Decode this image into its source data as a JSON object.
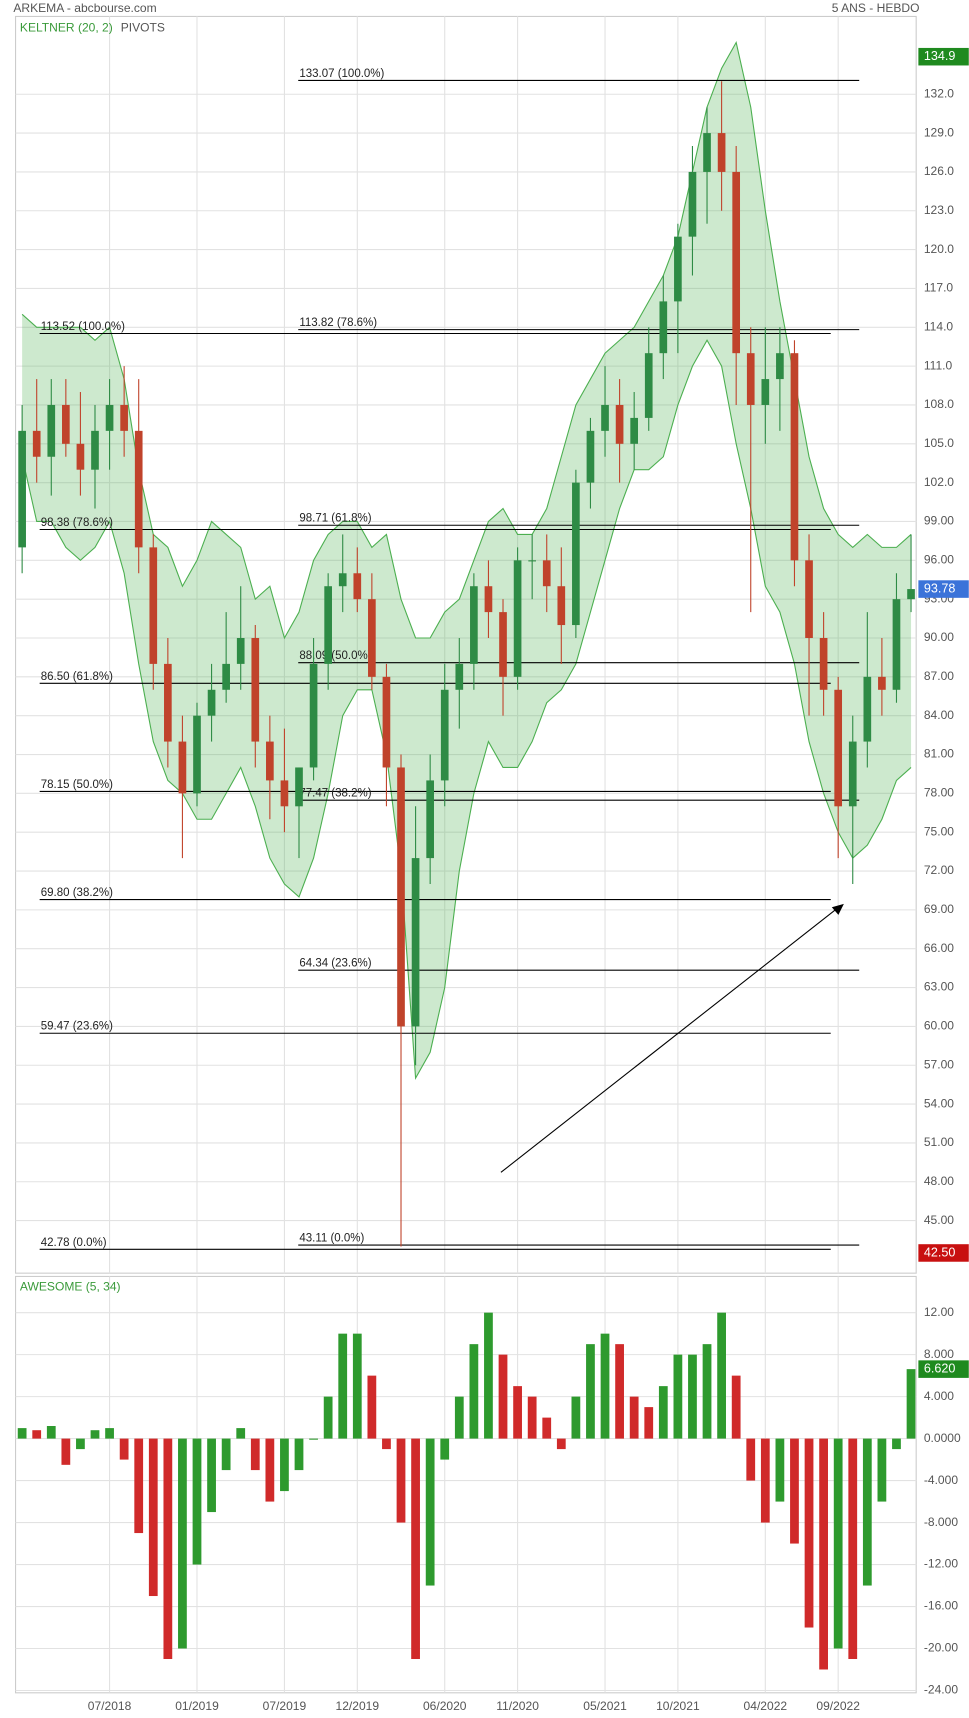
{
  "header": {
    "title": "ARKEMA - abcbourse.com",
    "period": "5 ANS - HEBDO"
  },
  "chart_data": [
    {
      "type": "candlestick",
      "indicator": "KELTNER (20, 2)",
      "overlay": "PIVOTS",
      "x": [
        "01/2018",
        "02/2018",
        "03/2018",
        "04/2018",
        "05/2018",
        "06/2018",
        "07/2018",
        "08/2018",
        "09/2018",
        "10/2018",
        "11/2018",
        "12/2018",
        "01/2019",
        "02/2019",
        "03/2019",
        "04/2019",
        "05/2019",
        "06/2019",
        "07/2019",
        "08/2019",
        "09/2019",
        "10/2019",
        "11/2019",
        "12/2019",
        "01/2020",
        "02/2020",
        "03/2020",
        "04/2020",
        "05/2020",
        "06/2020",
        "07/2020",
        "08/2020",
        "09/2020",
        "10/2020",
        "11/2020",
        "12/2020",
        "01/2021",
        "02/2021",
        "03/2021",
        "04/2021",
        "05/2021",
        "06/2021",
        "07/2021",
        "08/2021",
        "09/2021",
        "10/2021",
        "11/2021",
        "12/2021",
        "01/2022",
        "02/2022",
        "03/2022",
        "04/2022",
        "05/2022",
        "06/2022",
        "07/2022",
        "08/2022",
        "09/2022",
        "10/2022",
        "11/2022",
        "12/2022",
        "01/2023",
        "02/2023"
      ],
      "open": [
        97,
        106,
        104,
        108,
        105,
        103,
        106,
        108,
        106,
        97,
        88,
        82,
        78,
        84,
        86,
        88,
        90,
        82,
        79,
        77,
        80,
        88,
        94,
        95,
        93,
        87,
        80,
        60,
        73,
        79,
        86,
        88,
        94,
        92,
        87,
        96,
        96,
        94,
        91,
        102,
        106,
        108,
        105,
        107,
        112,
        116,
        121,
        126,
        129,
        126,
        112,
        108,
        110,
        112,
        96,
        90,
        86,
        77,
        82,
        87,
        86,
        93
      ],
      "high": [
        108,
        110,
        110,
        110,
        109,
        108,
        110,
        111,
        110,
        98,
        90,
        84,
        85,
        88,
        92,
        94,
        91,
        84,
        83,
        80,
        90,
        95,
        98,
        97,
        95,
        88,
        81,
        77,
        81,
        88,
        90,
        95,
        96,
        93,
        97,
        98,
        98,
        97,
        103,
        107,
        111,
        110,
        109,
        114,
        118,
        122,
        128,
        131,
        133,
        128,
        114,
        114,
        114,
        113,
        98,
        92,
        87,
        84,
        92,
        90,
        95,
        98
      ],
      "low": [
        95,
        102,
        101,
        104,
        101,
        100,
        103,
        104,
        95,
        86,
        80,
        73,
        77,
        82,
        85,
        86,
        80,
        76,
        75,
        73,
        79,
        86,
        92,
        92,
        86,
        77,
        43,
        57,
        71,
        77,
        83,
        86,
        90,
        84,
        86,
        93,
        92,
        88,
        90,
        100,
        104,
        102,
        103,
        106,
        110,
        112,
        118,
        122,
        123,
        108,
        92,
        105,
        106,
        94,
        84,
        84,
        73,
        71,
        80,
        84,
        85,
        92
      ],
      "close": [
        106,
        104,
        108,
        105,
        103,
        106,
        108,
        106,
        97,
        88,
        82,
        78,
        84,
        86,
        88,
        90,
        82,
        79,
        77,
        80,
        88,
        94,
        95,
        93,
        87,
        80,
        60,
        73,
        79,
        86,
        88,
        94,
        92,
        87,
        96,
        96,
        94,
        91,
        102,
        106,
        108,
        105,
        107,
        112,
        116,
        121,
        126,
        129,
        126,
        112,
        108,
        110,
        112,
        96,
        90,
        86,
        77,
        82,
        87,
        86,
        93,
        93.78
      ],
      "band_upper": [
        115,
        114,
        114,
        114,
        114,
        113,
        114,
        110,
        103,
        98,
        97,
        94,
        96,
        99,
        98,
        97,
        93,
        94,
        90,
        92,
        96,
        98,
        99,
        99,
        97,
        98,
        93,
        90,
        90,
        92,
        93,
        96,
        99,
        100,
        98,
        98,
        100,
        104,
        108,
        110,
        112,
        113,
        114,
        116,
        118,
        121,
        126,
        131,
        134,
        136,
        131,
        123,
        116,
        110,
        104,
        100,
        98,
        97,
        98,
        97,
        97,
        98
      ],
      "band_lower": [
        104,
        99,
        99,
        97,
        96,
        97,
        99,
        95,
        88,
        82,
        79,
        78,
        76,
        76,
        78,
        80,
        77,
        73,
        71,
        70,
        73,
        78,
        84,
        86,
        86,
        81,
        72,
        56,
        58,
        63,
        72,
        78,
        82,
        80,
        80,
        82,
        85,
        86,
        88,
        92,
        96,
        100,
        103,
        103,
        104,
        108,
        111,
        113,
        111,
        105,
        100,
        94,
        92,
        88,
        82,
        78,
        75,
        73,
        74,
        76,
        79,
        80
      ],
      "up_color": "#2e8b45",
      "down_color": "#c0432b",
      "band_color": "#4caf50",
      "ylim": [
        40.94,
        138.01
      ],
      "yticks": [
        {
          "value": 45,
          "label": "45.00"
        },
        {
          "value": 48,
          "label": "48.00"
        },
        {
          "value": 51,
          "label": "51.00"
        },
        {
          "value": 54,
          "label": "54.00"
        },
        {
          "value": 57,
          "label": "57.00"
        },
        {
          "value": 60,
          "label": "60.00"
        },
        {
          "value": 63,
          "label": "63.00"
        },
        {
          "value": 66,
          "label": "66.00"
        },
        {
          "value": 69,
          "label": "69.00"
        },
        {
          "value": 72,
          "label": "72.00"
        },
        {
          "value": 75,
          "label": "75.00"
        },
        {
          "value": 78,
          "label": "78.00"
        },
        {
          "value": 81,
          "label": "81.00"
        },
        {
          "value": 84,
          "label": "84.00"
        },
        {
          "value": 87,
          "label": "87.00"
        },
        {
          "value": 90,
          "label": "90.00"
        },
        {
          "value": 93,
          "label": "93.00"
        },
        {
          "value": 96,
          "label": "96.00"
        },
        {
          "value": 99,
          "label": "99.00"
        },
        {
          "value": 102,
          "label": "102.0"
        },
        {
          "value": 105,
          "label": "105.0"
        },
        {
          "value": 108,
          "label": "108.0"
        },
        {
          "value": 111,
          "label": "111.0"
        },
        {
          "value": 114,
          "label": "114.0"
        },
        {
          "value": 117,
          "label": "117.0"
        },
        {
          "value": 120,
          "label": "120.0"
        },
        {
          "value": 123,
          "label": "123.0"
        },
        {
          "value": 126,
          "label": "126.0"
        },
        {
          "value": 129,
          "label": "129.0"
        },
        {
          "value": 132,
          "label": "132.0"
        }
      ],
      "fibonacci": [
        [
          {
            "value": 113.52,
            "label": "113.52  (100.0%)"
          },
          {
            "value": 98.38,
            "label": "98.38  (78.6%)"
          },
          {
            "value": 86.5,
            "label": "86.50  (61.8%)"
          },
          {
            "value": 78.15,
            "label": "78.15  (50.0%)"
          },
          {
            "value": 69.8,
            "label": "69.80  (38.2%)"
          },
          {
            "value": 59.47,
            "label": "59.47  (23.6%)"
          },
          {
            "value": 42.78,
            "label": "42.78  (0.0%)"
          }
        ],
        [
          {
            "value": 133.07,
            "label": "133.07  (100.0%)"
          },
          {
            "value": 113.82,
            "label": "113.82  (78.6%)"
          },
          {
            "value": 98.71,
            "label": "98.71  (61.8%)"
          },
          {
            "value": 88.09,
            "label": "88.09  (50.0%)"
          },
          {
            "value": 77.47,
            "label": "77.47  (38.2%)"
          },
          {
            "value": 64.34,
            "label": "64.34  (23.6%)"
          },
          {
            "value": 43.11,
            "label": "43.11  (0.0%)"
          }
        ]
      ],
      "price_tags": [
        {
          "value": 134.9,
          "color": "#1f8a1f"
        },
        {
          "value": 93.78,
          "color": "#3b73d9"
        },
        {
          "value": 42.5,
          "label": "42.50",
          "color": "#c81010"
        }
      ]
    },
    {
      "type": "bar",
      "indicator": "AWESOME (5, 34)",
      "x": [
        "01/2018",
        "02/2018",
        "03/2018",
        "04/2018",
        "05/2018",
        "06/2018",
        "07/2018",
        "08/2018",
        "09/2018",
        "10/2018",
        "11/2018",
        "12/2018",
        "01/2019",
        "02/2019",
        "03/2019",
        "04/2019",
        "05/2019",
        "06/2019",
        "07/2019",
        "08/2019",
        "09/2019",
        "10/2019",
        "11/2019",
        "12/2019",
        "01/2020",
        "02/2020",
        "03/2020",
        "04/2020",
        "05/2020",
        "06/2020",
        "07/2020",
        "08/2020",
        "09/2020",
        "10/2020",
        "11/2020",
        "12/2020",
        "01/2021",
        "02/2021",
        "03/2021",
        "04/2021",
        "05/2021",
        "06/2021",
        "07/2021",
        "08/2021",
        "09/2021",
        "10/2021",
        "11/2021",
        "12/2021",
        "01/2022",
        "02/2022",
        "03/2022",
        "04/2022",
        "05/2022",
        "06/2022",
        "07/2022",
        "08/2022",
        "09/2022",
        "10/2022",
        "11/2022",
        "12/2022",
        "01/2023",
        "02/2023"
      ],
      "values": [
        1.0,
        0.8,
        1.2,
        -2.5,
        -1,
        0.8,
        1.0,
        -2,
        -9,
        -15,
        -21,
        -20,
        -12,
        -7,
        -3,
        1,
        -3,
        -6,
        -5,
        -3,
        0,
        4,
        10,
        10,
        6,
        -1,
        -8,
        -21,
        -14,
        -2,
        4,
        9,
        12,
        8,
        5,
        4,
        2,
        -1,
        4,
        9,
        10,
        9,
        4,
        3,
        5,
        8,
        8,
        9,
        12,
        6,
        -4,
        -8,
        -6,
        -10,
        -18,
        -22,
        -20,
        -21,
        -14,
        -6,
        -1,
        6.62
      ],
      "value_labels_last": "6.620",
      "up_color": "#2e9a2e",
      "down_color": "#d02a2a",
      "tag_color": "#1f8a1f",
      "ylim": [
        -24.22,
        15.45
      ],
      "yticks": [
        {
          "value": 12,
          "label": "12.00"
        },
        {
          "value": 8,
          "label": "8.000"
        },
        {
          "value": 4,
          "label": "4.000"
        },
        {
          "value": 0,
          "label": "0.0000"
        },
        {
          "value": -4,
          "label": "-4.000"
        },
        {
          "value": -8,
          "label": "-8.000"
        },
        {
          "value": -12,
          "label": "-12.00"
        },
        {
          "value": -16,
          "label": "-16.00"
        },
        {
          "value": -20,
          "label": "-20.00"
        },
        {
          "value": -24,
          "label": "-24.00"
        }
      ],
      "xticks": [
        "07/2018",
        "01/2019",
        "07/2019",
        "12/2019",
        "06/2020",
        "11/2020",
        "05/2021",
        "10/2021",
        "04/2022",
        "09/2022"
      ]
    }
  ]
}
